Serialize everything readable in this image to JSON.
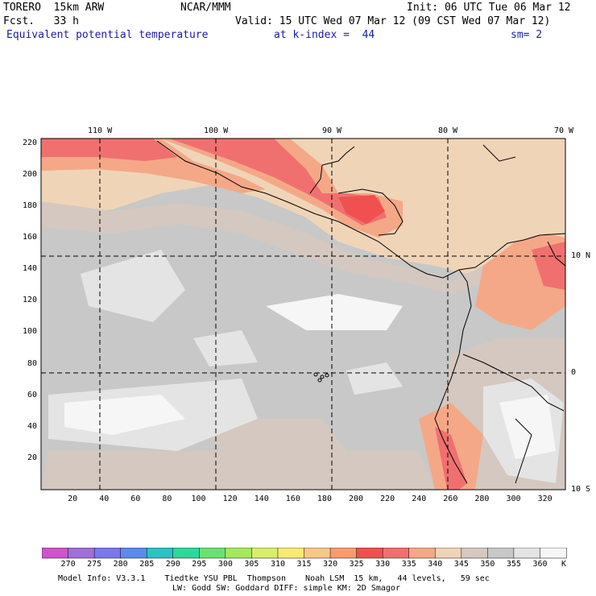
{
  "header": {
    "model": "TORERO  15km ARW",
    "org": "NCAR/MMM",
    "init": "Init: 06 UTC Tue 06 Mar 12",
    "fcst": "Fcst.   33 h",
    "valid": "Valid: 15 UTC Wed 07 Mar 12 (09 CST Wed 07 Mar 12)",
    "field": "Equivalent potential temperature",
    "level": "at k-index =  44",
    "sm": "sm= 2"
  },
  "map": {
    "lon_labels": [
      "110 W",
      "100 W",
      "90 W",
      "80 W",
      "70 W"
    ],
    "lat_labels": [
      "10 N",
      "0",
      "10 S"
    ],
    "grid_x_ticks": [
      "20",
      "40",
      "60",
      "80",
      "100",
      "120",
      "140",
      "160",
      "180",
      "200",
      "220",
      "240",
      "260",
      "280",
      "300",
      "320"
    ],
    "grid_y_ticks": [
      "20",
      "40",
      "60",
      "80",
      "100",
      "120",
      "140",
      "160",
      "180",
      "200",
      "220"
    ]
  },
  "colorbar": {
    "levels": [
      "270",
      "275",
      "280",
      "285",
      "290",
      "295",
      "300",
      "305",
      "310",
      "315",
      "320",
      "325",
      "330",
      "335",
      "340",
      "345",
      "350",
      "355",
      "360"
    ],
    "unit": "K",
    "colors": [
      "#cc55cc",
      "#a070d8",
      "#7b78e8",
      "#5a8ce8",
      "#2cc2c2",
      "#2cd89a",
      "#6ce070",
      "#a4e860",
      "#d8ec70",
      "#f8e878",
      "#f8c888",
      "#f89c70",
      "#f05050",
      "#f07070",
      "#f4a888",
      "#f0d4b8",
      "#d4c8c0",
      "#c8c8c8",
      "#e4e4e4",
      "#f6f6f6"
    ]
  },
  "footer": {
    "line1": "Model Info: V3.3.1    Tiedtke YSU PBL  Thompson    Noah LSM  15 km,   44 levels,   59 sec",
    "line2": "LW: Godd SW: Goddard DIFF: simple KM: 2D Smagor"
  }
}
